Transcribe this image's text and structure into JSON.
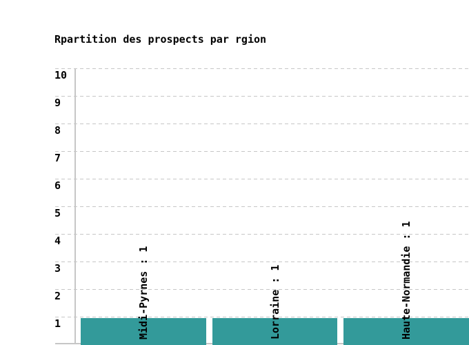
{
  "chart_data": {
    "type": "bar",
    "title": "Rpartition des prospects par rgion",
    "categories": [
      "Midi-Pyrnes",
      "Lorraine",
      "Haute-Normandie"
    ],
    "values": [
      1,
      1,
      1
    ],
    "bar_labels": [
      "Midi-Pyrnes : 1",
      "Lorraine : 1",
      "Haute-Normandie : 1"
    ],
    "y_ticks": [
      10,
      9,
      8,
      7,
      6,
      5,
      4,
      3,
      2,
      1
    ],
    "ylim": [
      0,
      10
    ],
    "xlabel": "",
    "ylabel": "",
    "legend": "none",
    "grid": "horizontal-dashed",
    "colors": {
      "bar": "#339a9a",
      "grid": "#c6c6c6",
      "axis": "#c6c6c6",
      "text": "#000000",
      "background": "#ffffff"
    }
  }
}
